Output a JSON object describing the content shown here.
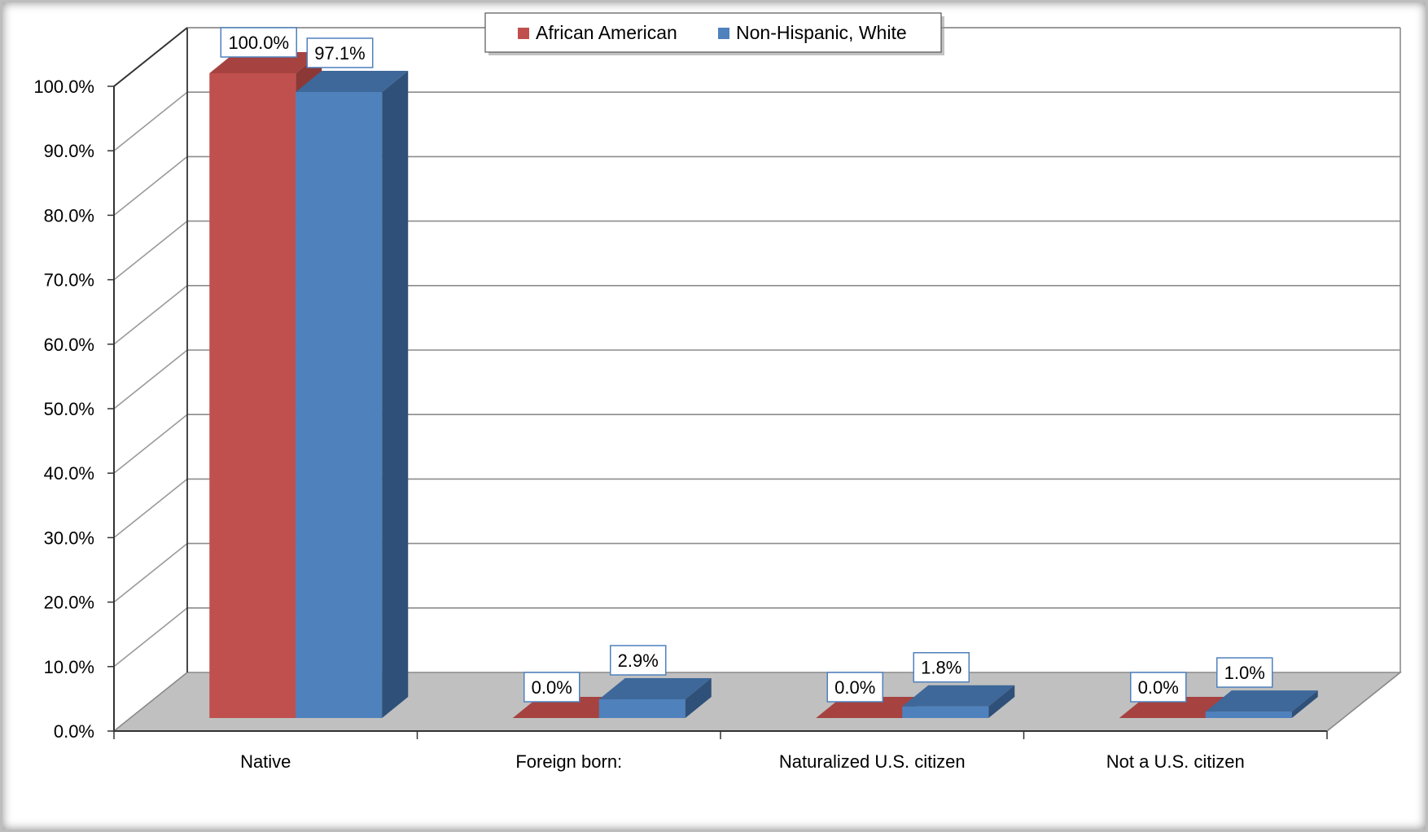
{
  "chart_data": {
    "type": "bar",
    "categories": [
      "Native",
      "Foreign born:",
      "Naturalized U.S. citizen",
      "Not a U.S. citizen"
    ],
    "series": [
      {
        "name": "African American",
        "values": [
          100.0,
          0.0,
          0.0,
          0.0
        ],
        "labels": [
          "100.0%",
          "0.0%",
          "0.0%",
          "0.0%"
        ],
        "color": "#c0504d",
        "side_color": "#8c3836",
        "top_color": "#a64240"
      },
      {
        "name": "Non-Hispanic, White",
        "values": [
          97.1,
          2.9,
          1.8,
          1.0
        ],
        "labels": [
          "97.1%",
          "2.9%",
          "1.8%",
          "1.0%"
        ],
        "color": "#4f81bd",
        "side_color": "#2f5078",
        "top_color": "#3d6899"
      }
    ],
    "ylim": [
      0,
      100
    ],
    "y_ticks": [
      "0.0%",
      "10.0%",
      "20.0%",
      "30.0%",
      "40.0%",
      "50.0%",
      "60.0%",
      "70.0%",
      "80.0%",
      "90.0%",
      "100.0%"
    ],
    "xlabel": "",
    "ylabel": "",
    "grid": true,
    "legend_position": "top",
    "floor_color": "#c0c0c0",
    "style": "3d-clustered-column"
  }
}
